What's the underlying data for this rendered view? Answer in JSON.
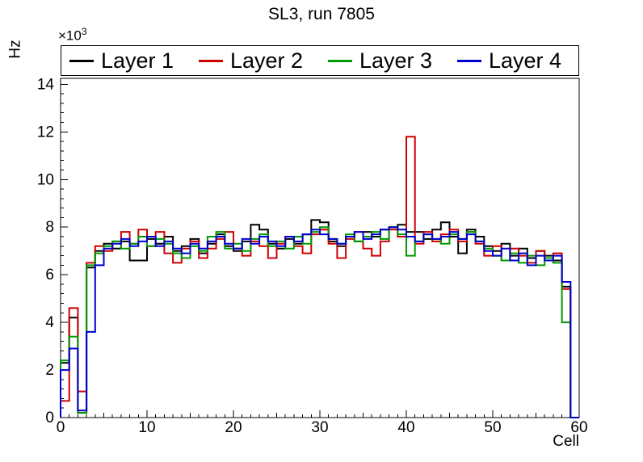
{
  "title": "SL3, run 7805",
  "chart_data": {
    "type": "step-histogram",
    "title": "SL3, run 7805",
    "xlabel": "Cell",
    "ylabel": "Hz",
    "y_multiplier_base": "×10",
    "y_multiplier_exp": "3",
    "y_unit_scale": 1000,
    "xlim": [
      0,
      60
    ],
    "ylim": [
      0,
      14.25
    ],
    "x_ticks": [
      0,
      10,
      20,
      30,
      40,
      50,
      60
    ],
    "y_ticks": [
      0,
      2,
      4,
      6,
      8,
      10,
      12,
      14
    ],
    "bin_width": 1,
    "grid": false,
    "legend_position": "top",
    "series": [
      {
        "name": "Layer 1",
        "color": "#000000",
        "values": [
          2.3,
          4.2,
          0.2,
          6.3,
          7.0,
          7.3,
          7.1,
          7.4,
          6.6,
          6.6,
          7.5,
          7.3,
          7.6,
          7.0,
          7.2,
          7.5,
          6.9,
          7.3,
          7.7,
          7.2,
          7.0,
          7.4,
          8.1,
          7.9,
          7.3,
          7.1,
          7.5,
          7.3,
          7.7,
          8.3,
          8.2,
          7.4,
          7.2,
          7.6,
          7.4,
          7.8,
          7.6,
          7.9,
          8.0,
          8.1,
          7.8,
          7.8,
          7.5,
          7.9,
          8.2,
          7.6,
          6.9,
          7.9,
          7.6,
          7.2,
          7.0,
          7.3,
          6.8,
          7.1,
          6.7,
          7.0,
          6.8,
          6.6,
          5.5,
          0.0
        ]
      },
      {
        "name": "Layer 2",
        "color": "#cc0000",
        "values": [
          0.7,
          4.6,
          1.1,
          6.5,
          7.2,
          7.0,
          7.4,
          7.8,
          7.3,
          7.9,
          7.2,
          7.8,
          6.9,
          6.5,
          7.1,
          7.4,
          6.7,
          7.1,
          7.5,
          7.8,
          7.1,
          6.8,
          7.4,
          7.2,
          6.7,
          7.3,
          7.6,
          7.2,
          6.9,
          7.7,
          7.9,
          7.3,
          6.7,
          7.5,
          7.8,
          7.1,
          6.8,
          7.4,
          7.9,
          7.6,
          11.8,
          7.3,
          7.8,
          7.4,
          7.7,
          7.9,
          7.4,
          7.8,
          7.3,
          6.8,
          7.2,
          6.6,
          7.1,
          6.8,
          6.5,
          7.0,
          6.7,
          6.9,
          5.4,
          0.0
        ]
      },
      {
        "name": "Layer 3",
        "color": "#009900",
        "values": [
          2.4,
          3.4,
          0.2,
          6.4,
          6.9,
          7.2,
          7.4,
          7.1,
          7.3,
          7.6,
          7.2,
          7.5,
          7.3,
          6.9,
          6.7,
          7.2,
          7.0,
          7.6,
          7.8,
          7.1,
          7.3,
          7.0,
          7.5,
          7.7,
          7.2,
          7.4,
          7.1,
          7.6,
          7.3,
          7.8,
          8.0,
          7.5,
          7.3,
          7.7,
          7.4,
          7.6,
          7.8,
          7.5,
          8.0,
          7.7,
          6.8,
          7.4,
          7.7,
          7.5,
          7.3,
          7.7,
          7.5,
          7.8,
          7.4,
          7.1,
          6.8,
          6.6,
          6.9,
          6.5,
          6.8,
          6.4,
          6.7,
          6.5,
          4.0,
          0.0
        ]
      },
      {
        "name": "Layer 4",
        "color": "#0000cc",
        "values": [
          2.0,
          2.9,
          0.3,
          3.6,
          6.4,
          7.1,
          7.3,
          7.5,
          7.2,
          7.4,
          7.6,
          7.2,
          7.4,
          7.1,
          6.9,
          7.3,
          7.1,
          7.4,
          7.6,
          7.3,
          7.1,
          7.5,
          7.3,
          7.6,
          7.4,
          7.2,
          7.6,
          7.4,
          7.7,
          7.9,
          7.7,
          7.5,
          7.3,
          7.6,
          7.8,
          7.5,
          7.7,
          7.9,
          8.0,
          7.9,
          7.6,
          7.4,
          7.7,
          7.5,
          7.6,
          7.8,
          7.5,
          7.7,
          7.4,
          7.0,
          6.8,
          7.1,
          6.6,
          6.9,
          6.4,
          6.8,
          6.6,
          6.8,
          5.7,
          0.0
        ]
      }
    ]
  }
}
